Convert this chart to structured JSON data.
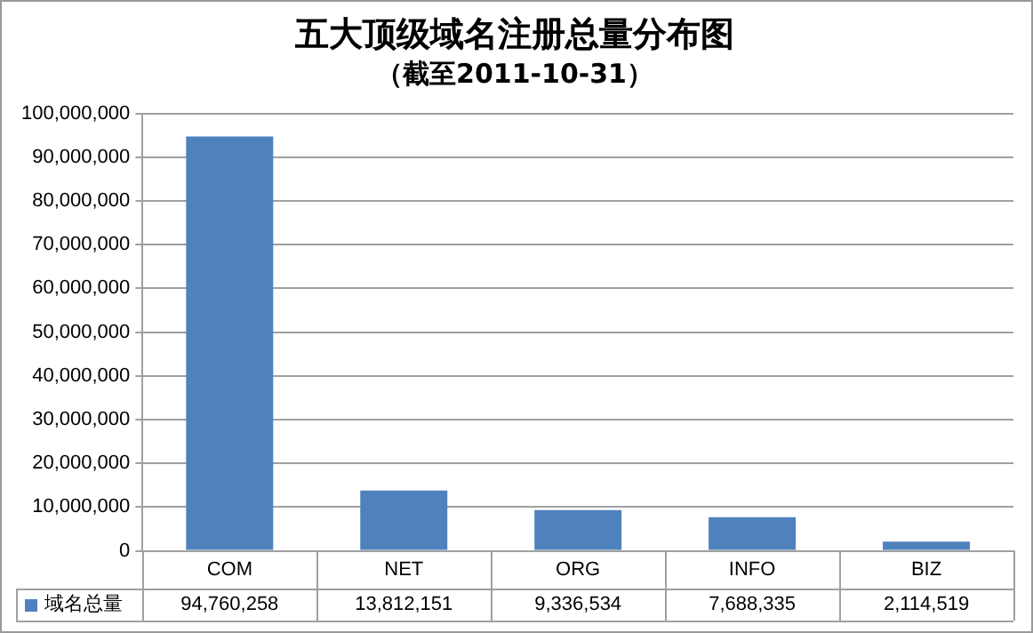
{
  "chart_data": {
    "type": "bar",
    "title": "五大顶级域名注册总量分布图",
    "subtitle": "（截至2011-10-31）",
    "categories": [
      "COM",
      "NET",
      "ORG",
      "INFO",
      "BIZ"
    ],
    "series": [
      {
        "name": "域名总量",
        "color": "#4f81bd",
        "values": [
          94760258,
          13812151,
          9336534,
          7688335,
          2114519
        ],
        "value_labels": [
          "94,760,258",
          "13,812,151",
          "9,336,534",
          "7,688,335",
          "2,114,519"
        ]
      }
    ],
    "ylim": [
      0,
      100000000
    ],
    "yticks": [
      {
        "value": 0,
        "label": "0"
      },
      {
        "value": 10000000,
        "label": "10,000,000"
      },
      {
        "value": 20000000,
        "label": "20,000,000"
      },
      {
        "value": 30000000,
        "label": "30,000,000"
      },
      {
        "value": 40000000,
        "label": "40,000,000"
      },
      {
        "value": 50000000,
        "label": "50,000,000"
      },
      {
        "value": 60000000,
        "label": "60,000,000"
      },
      {
        "value": 70000000,
        "label": "70,000,000"
      },
      {
        "value": 80000000,
        "label": "80,000,000"
      },
      {
        "value": 90000000,
        "label": "90,000,000"
      },
      {
        "value": 100000000,
        "label": "100,000,000"
      }
    ],
    "grid": "y"
  }
}
